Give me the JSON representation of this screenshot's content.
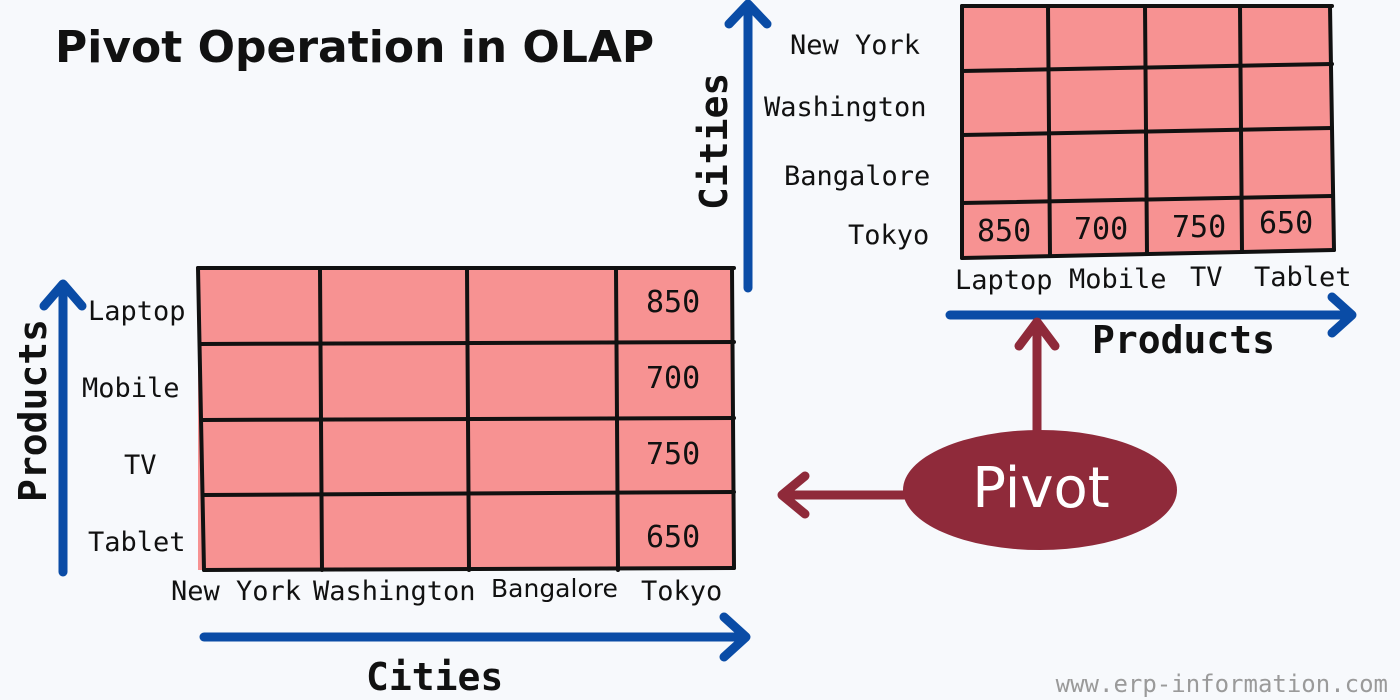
{
  "title": "Pivot Operation in OLAP",
  "colors": {
    "cell_fill": "#f79292",
    "grid_line": "#111111",
    "axis_arrow": "#0a4ca6",
    "pivot_fill": "#8f2a3a",
    "pivot_text": "#ffffff",
    "footer_text": "#9a9a9a"
  },
  "left_table": {
    "row_axis_title": "Products",
    "col_axis_title": "Cities",
    "rows": [
      "Laptop",
      "Mobile",
      "TV",
      "Tablet"
    ],
    "columns": [
      "New York",
      "Washington",
      "Bangalore",
      "Tokyo"
    ],
    "values": [
      "850",
      "700",
      "750",
      "650"
    ]
  },
  "right_table": {
    "row_axis_title": "Cities",
    "col_axis_title": "Products",
    "rows": [
      "New York",
      "Washington",
      "Bangalore",
      "Tokyo"
    ],
    "columns": [
      "Laptop",
      "Mobile",
      "TV",
      "Tablet"
    ],
    "values": [
      "850",
      "700",
      "750",
      "650"
    ]
  },
  "pivot_label": "Pivot",
  "footer": "www.erp-information.com"
}
